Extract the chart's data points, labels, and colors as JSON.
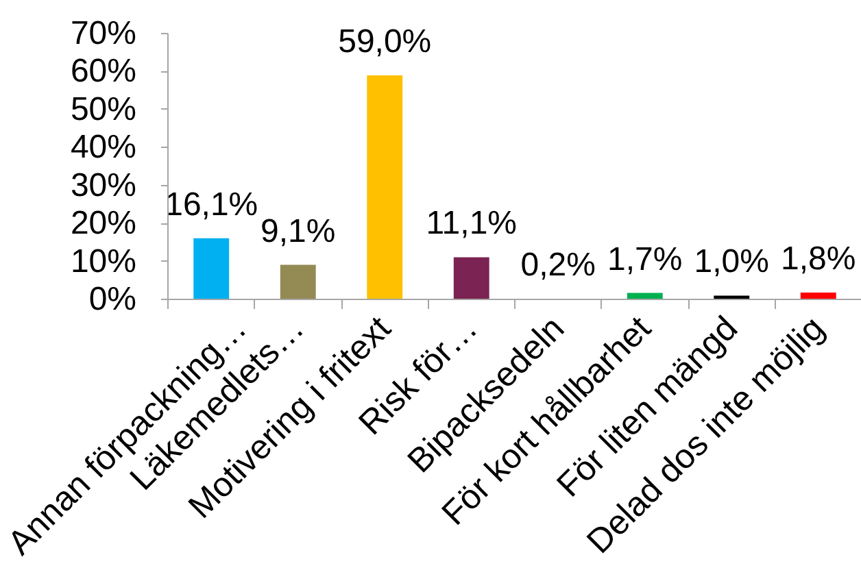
{
  "chart_data": {
    "type": "bar",
    "categories": [
      "Annan förpackning…",
      "Läkemedlets…",
      "Motivering i fritext",
      "Risk för…",
      "Bipacksedeln",
      "För kort hållbarhet",
      "För liten mängd",
      "Delad dos inte möjlig"
    ],
    "values": [
      16.1,
      9.1,
      59.0,
      11.1,
      0.2,
      1.7,
      1.0,
      1.8
    ],
    "colors": [
      "#00b0f0",
      "#948a54",
      "#ffc000",
      "#7b2352",
      "#4f8f9b",
      "#00b050",
      "#000000",
      "#ff0000"
    ],
    "value_labels": [
      "16,1%",
      "9,1%",
      "59,0%",
      "11,1%",
      "0,2%",
      "1,7%",
      "1,0%",
      "1,8%"
    ],
    "ylim": [
      0,
      70
    ],
    "yticks": [
      {
        "value": 0,
        "label": "0%"
      },
      {
        "value": 10,
        "label": "10%"
      },
      {
        "value": 20,
        "label": "20%"
      },
      {
        "value": 30,
        "label": "30%"
      },
      {
        "value": 40,
        "label": "40%"
      },
      {
        "value": 50,
        "label": "50%"
      },
      {
        "value": 60,
        "label": "60%"
      },
      {
        "value": 70,
        "label": "70%"
      }
    ]
  }
}
